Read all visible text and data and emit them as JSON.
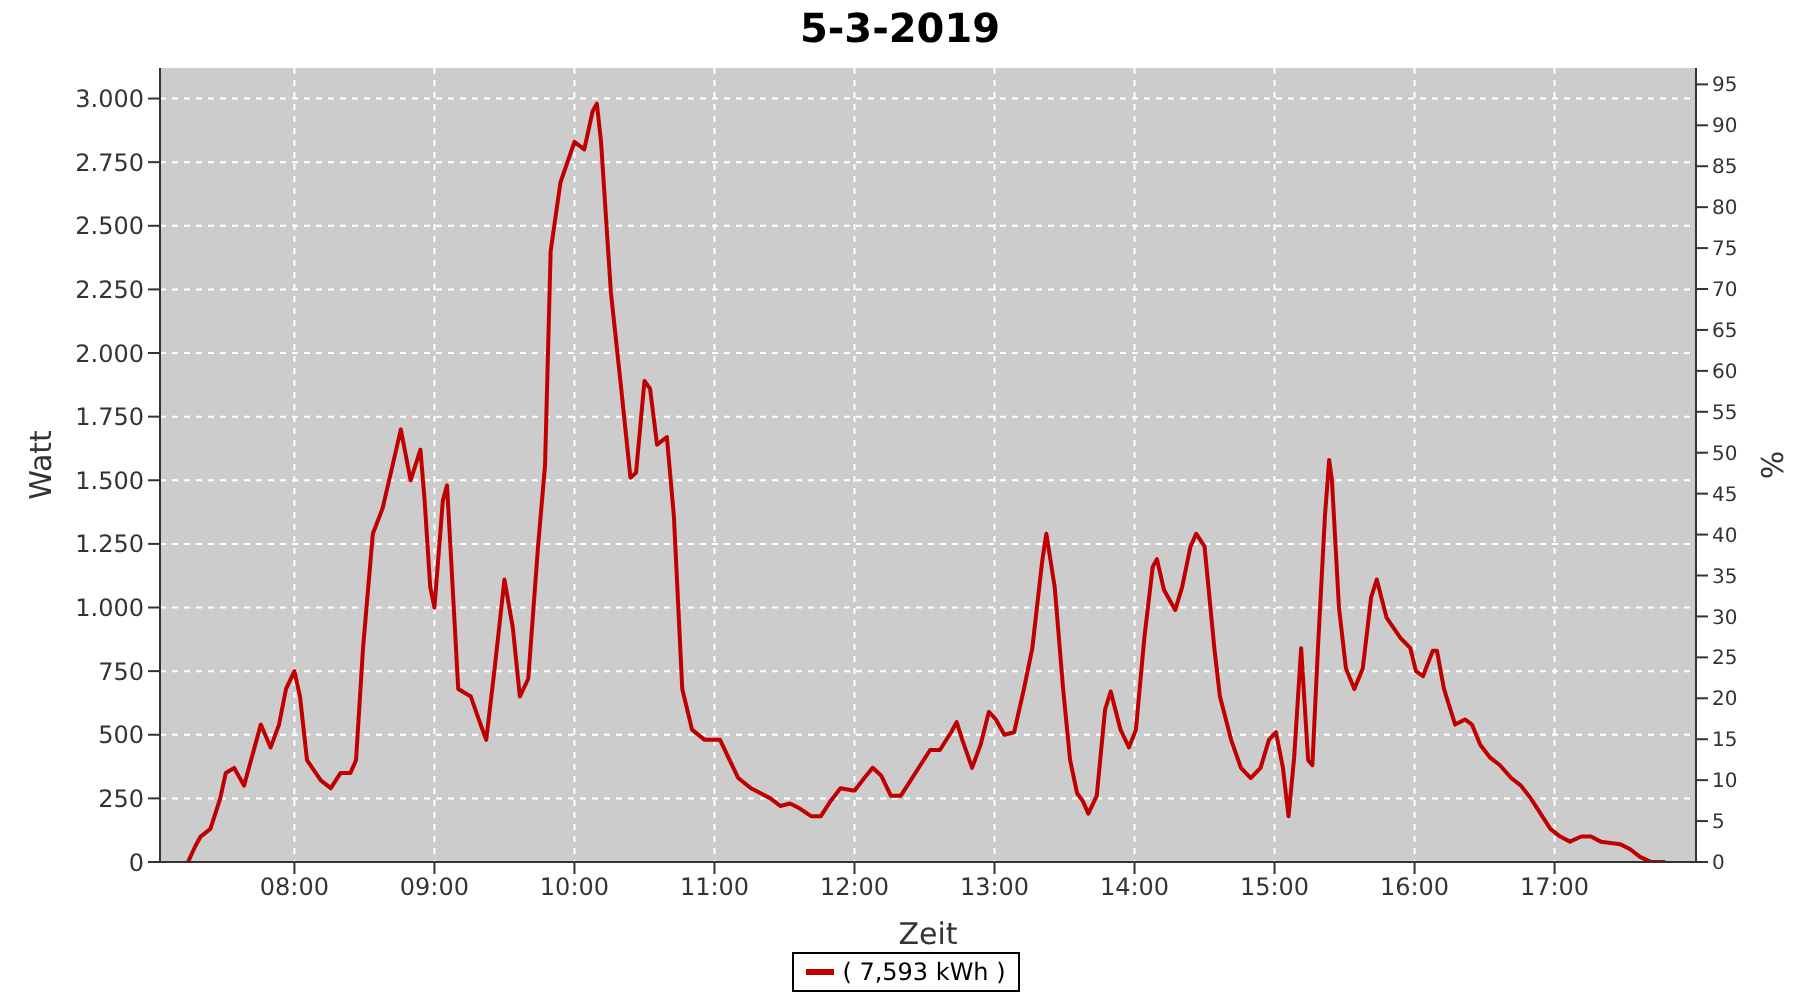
{
  "chart_data": {
    "type": "line",
    "title": "5-3-2019",
    "xlabel": "Zeit",
    "ylabel": "Watt",
    "y2label": "%",
    "series": [
      {
        "name": "( 7,593 kWh )",
        "color": "#c00000",
        "x": [
          7.24,
          7.29,
          7.33,
          7.4,
          7.47,
          7.51,
          7.57,
          7.64,
          7.73,
          7.76,
          7.83,
          7.89,
          7.94,
          8.0,
          8.04,
          8.09,
          8.19,
          8.26,
          8.33,
          8.4,
          8.44,
          8.49,
          8.56,
          8.63,
          8.71,
          8.76,
          8.83,
          8.9,
          8.93,
          8.97,
          9.0,
          9.06,
          9.09,
          9.11,
          9.17,
          9.26,
          9.33,
          9.37,
          9.43,
          9.5,
          9.56,
          9.61,
          9.67,
          9.74,
          9.79,
          9.83,
          9.9,
          10.0,
          10.07,
          10.13,
          10.16,
          10.19,
          10.26,
          10.33,
          10.4,
          10.44,
          10.5,
          10.54,
          10.59,
          10.66,
          10.71,
          10.77,
          10.84,
          10.93,
          11.04,
          11.1,
          11.17,
          11.26,
          11.33,
          11.4,
          11.47,
          11.54,
          11.61,
          11.69,
          11.76,
          11.83,
          11.9,
          12.0,
          12.07,
          12.13,
          12.19,
          12.26,
          12.33,
          12.4,
          12.47,
          12.54,
          12.61,
          12.69,
          12.73,
          12.77,
          12.84,
          12.9,
          12.96,
          13.01,
          13.07,
          13.14,
          13.21,
          13.27,
          13.34,
          13.37,
          13.43,
          13.49,
          13.54,
          13.59,
          13.63,
          13.67,
          13.73,
          13.79,
          13.83,
          13.9,
          13.96,
          14.01,
          14.07,
          14.13,
          14.16,
          14.21,
          14.29,
          14.34,
          14.4,
          14.44,
          14.5,
          14.57,
          14.61,
          14.69,
          14.76,
          14.83,
          14.9,
          14.96,
          15.01,
          15.06,
          15.1,
          15.14,
          15.19,
          15.24,
          15.27,
          15.31,
          15.36,
          15.39,
          15.41,
          15.46,
          15.51,
          15.57,
          15.63,
          15.69,
          15.73,
          15.8,
          15.9,
          15.97,
          16.01,
          16.06,
          16.13,
          16.16,
          16.21,
          16.29,
          16.36,
          16.41,
          16.47,
          16.54,
          16.61,
          16.69,
          16.76,
          16.83,
          16.9,
          16.97,
          17.04,
          17.11,
          17.19,
          17.26,
          17.33,
          17.47,
          17.54,
          17.61,
          17.69,
          17.79
        ],
        "values": [
          0,
          60,
          100,
          130,
          250,
          350,
          370,
          300,
          480,
          540,
          450,
          540,
          680,
          750,
          650,
          400,
          320,
          290,
          350,
          350,
          400,
          840,
          1290,
          1390,
          1580,
          1700,
          1500,
          1620,
          1420,
          1080,
          1000,
          1420,
          1480,
          1280,
          680,
          650,
          540,
          480,
          760,
          1110,
          920,
          650,
          720,
          1240,
          1560,
          2400,
          2670,
          2830,
          2800,
          2950,
          2980,
          2830,
          2240,
          1880,
          1510,
          1530,
          1890,
          1860,
          1640,
          1670,
          1360,
          680,
          520,
          480,
          480,
          410,
          330,
          290,
          270,
          250,
          220,
          230,
          210,
          180,
          180,
          240,
          290,
          280,
          330,
          370,
          340,
          260,
          260,
          320,
          380,
          440,
          440,
          510,
          550,
          480,
          370,
          460,
          590,
          560,
          500,
          510,
          680,
          840,
          1180,
          1290,
          1080,
          680,
          400,
          270,
          240,
          190,
          260,
          600,
          670,
          520,
          450,
          520,
          880,
          1160,
          1190,
          1070,
          990,
          1080,
          1240,
          1290,
          1240,
          840,
          650,
          480,
          370,
          330,
          370,
          480,
          510,
          370,
          180,
          410,
          840,
          400,
          380,
          840,
          1360,
          1580,
          1500,
          1000,
          760,
          680,
          760,
          1040,
          1110,
          960,
          880,
          840,
          750,
          730,
          830,
          830,
          680,
          540,
          560,
          540,
          460,
          410,
          380,
          330,
          300,
          250,
          190,
          130,
          100,
          80,
          100,
          100,
          80,
          70,
          50,
          20,
          0,
          0
        ]
      }
    ],
    "xlim": [
      7.04,
      18.01
    ],
    "xticks": [
      {
        "value": 8,
        "label": "08:00"
      },
      {
        "value": 9,
        "label": "09:00"
      },
      {
        "value": 10,
        "label": "10:00"
      },
      {
        "value": 11,
        "label": "11:00"
      },
      {
        "value": 12,
        "label": "12:00"
      },
      {
        "value": 13,
        "label": "13:00"
      },
      {
        "value": 14,
        "label": "14:00"
      },
      {
        "value": 15,
        "label": "15:00"
      },
      {
        "value": 16,
        "label": "16:00"
      },
      {
        "value": 17,
        "label": "17:00"
      }
    ],
    "ylim": [
      0,
      3120
    ],
    "yticks": [
      0,
      250,
      500,
      750,
      {
        "value": 1000,
        "label": "1.000"
      },
      {
        "value": 1250,
        "label": "1.250"
      },
      {
        "value": 1500,
        "label": "1.500"
      },
      {
        "value": 1750,
        "label": "1.750"
      },
      {
        "value": 2000,
        "label": "2.000"
      },
      {
        "value": 2250,
        "label": "2.250"
      },
      {
        "value": 2500,
        "label": "2.500"
      },
      {
        "value": 2750,
        "label": "2.750"
      },
      {
        "value": 3000,
        "label": "3.000"
      }
    ],
    "y2lim": [
      0,
      97
    ],
    "y2ticks": [
      0,
      5,
      10,
      15,
      20,
      25,
      30,
      35,
      40,
      45,
      50,
      55,
      60,
      65,
      70,
      75,
      80,
      85,
      90,
      95
    ],
    "grid": true,
    "legend": "bottom",
    "marker": "none",
    "line_style": "solid"
  }
}
